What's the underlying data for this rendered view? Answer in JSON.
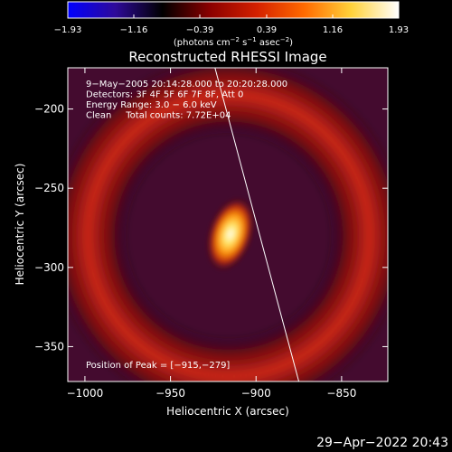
{
  "chart_data": {
    "type": "heatmap",
    "title": "Reconstructed RHESSI Image",
    "xlabel": "Heliocentric X (arcsec)",
    "ylabel": "Heliocentric Y (arcsec)",
    "xlim": [
      -1010,
      -823
    ],
    "ylim": [
      -372,
      -174
    ],
    "x_ticks": [
      -1000,
      -950,
      -900,
      -850
    ],
    "y_ticks": [
      -200,
      -250,
      -300,
      -350
    ],
    "x_tick_labels": [
      "−1000",
      "−950",
      "−900",
      "−850"
    ],
    "y_tick_labels": [
      "−200",
      "−250",
      "−300",
      "−350"
    ],
    "colorbar": {
      "range": [
        -1.93,
        1.93
      ],
      "tick_labels": [
        "−1.93",
        "−1.16",
        "−0.39",
        "0.39",
        "1.16",
        "1.93"
      ],
      "unit_text": "(photons cm",
      "unit_sup1": "−2",
      "unit_mid": " s",
      "unit_sup2": "−1",
      "unit_mid2": " asec",
      "unit_sup3": "−2",
      "unit_close": ")",
      "colors": [
        "#0000ff",
        "#2e0a9a",
        "#000000",
        "#8a0000",
        "#d42000",
        "#ff6a00",
        "#ffd23a",
        "#ffffff"
      ]
    },
    "annotations": [
      "9−May−2005 20:14:28.000 to 20:20:28.000",
      "Detectors: 3F 4F 5F 6F 7F 8F, Att 0",
      "Energy Range: 3.0 − 6.0 keV",
      "Clean     Total counts: 7.72E+04"
    ],
    "peak_label": "Position of Peak = [−915,−279]",
    "peak": {
      "x": -915,
      "y": -279,
      "value": 1.93
    },
    "limb_line": {
      "x1": -924,
      "y1": -174,
      "x2": -875,
      "y2": -372
    },
    "ring": {
      "center_x": -916,
      "center_y": -280,
      "radius": 68,
      "value": 0.9
    },
    "date_label": "29−Apr−2022 20:43"
  }
}
